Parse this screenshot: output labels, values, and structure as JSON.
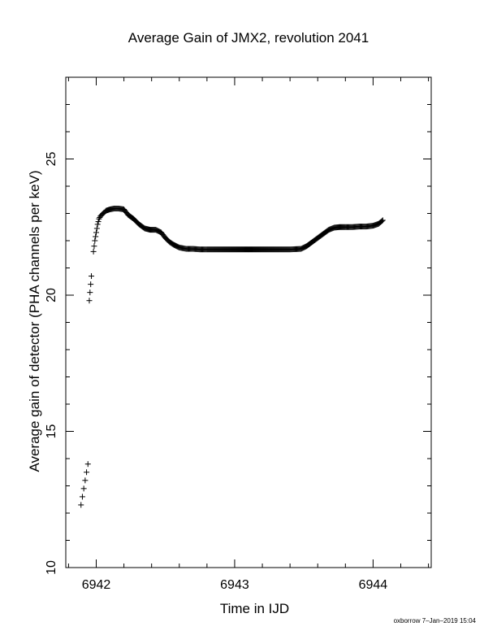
{
  "chart_data": {
    "type": "scatter",
    "title": "Average Gain of JMX2, revolution 2041",
    "xlabel": "Time in IJD",
    "ylabel": "Average gain of detector (PHA channels per keV)",
    "xlim": [
      6941.78,
      6944.42
    ],
    "ylim": [
      10,
      28
    ],
    "x_ticks": [
      6942,
      6943,
      6944
    ],
    "x_tick_labels": [
      "6942",
      "6943",
      "6944"
    ],
    "y_ticks": [
      10,
      15,
      20,
      25
    ],
    "y_tick_labels": [
      "10",
      "15",
      "20",
      "25"
    ],
    "marker": "+",
    "grid": false,
    "series": [
      {
        "x": [
          6941.89,
          6941.9,
          6941.91,
          6941.92,
          6941.93,
          6941.94,
          6941.95,
          6941.955,
          6941.96,
          6941.965,
          6941.98,
          6941.99,
          6942.0,
          6942.01,
          6942.02,
          6942.03,
          6942.05,
          6942.07,
          6942.1,
          6942.13,
          6942.16,
          6942.2,
          6942.23,
          6942.27,
          6942.31,
          6942.35,
          6942.39,
          6942.43,
          6942.47,
          6942.5,
          6942.53,
          6942.56,
          6942.6,
          6942.65,
          6942.7,
          6942.75,
          6942.8,
          6942.9,
          6943.0,
          6943.1,
          6943.2,
          6943.3,
          6943.4,
          6943.48,
          6943.52,
          6943.56,
          6943.6,
          6943.64,
          6943.68,
          6943.72,
          6943.76,
          6943.8,
          6943.85,
          6943.9,
          6943.95,
          6944.0,
          6944.04,
          6944.07
        ],
        "y": [
          12.3,
          12.6,
          12.9,
          13.2,
          13.5,
          13.8,
          19.8,
          20.1,
          20.4,
          20.7,
          21.6,
          22.0,
          22.3,
          22.6,
          22.8,
          22.9,
          23.0,
          23.1,
          23.15,
          23.18,
          23.18,
          23.15,
          22.95,
          22.8,
          22.6,
          22.45,
          22.4,
          22.4,
          22.3,
          22.1,
          21.95,
          21.85,
          21.75,
          21.7,
          21.7,
          21.68,
          21.68,
          21.68,
          21.68,
          21.68,
          21.68,
          21.68,
          21.68,
          21.7,
          21.8,
          21.95,
          22.1,
          22.25,
          22.4,
          22.48,
          22.5,
          22.5,
          22.5,
          22.52,
          22.52,
          22.55,
          22.62,
          22.75
        ]
      }
    ]
  },
  "footer": "oxborrow  7–Jan–2019 15:04"
}
